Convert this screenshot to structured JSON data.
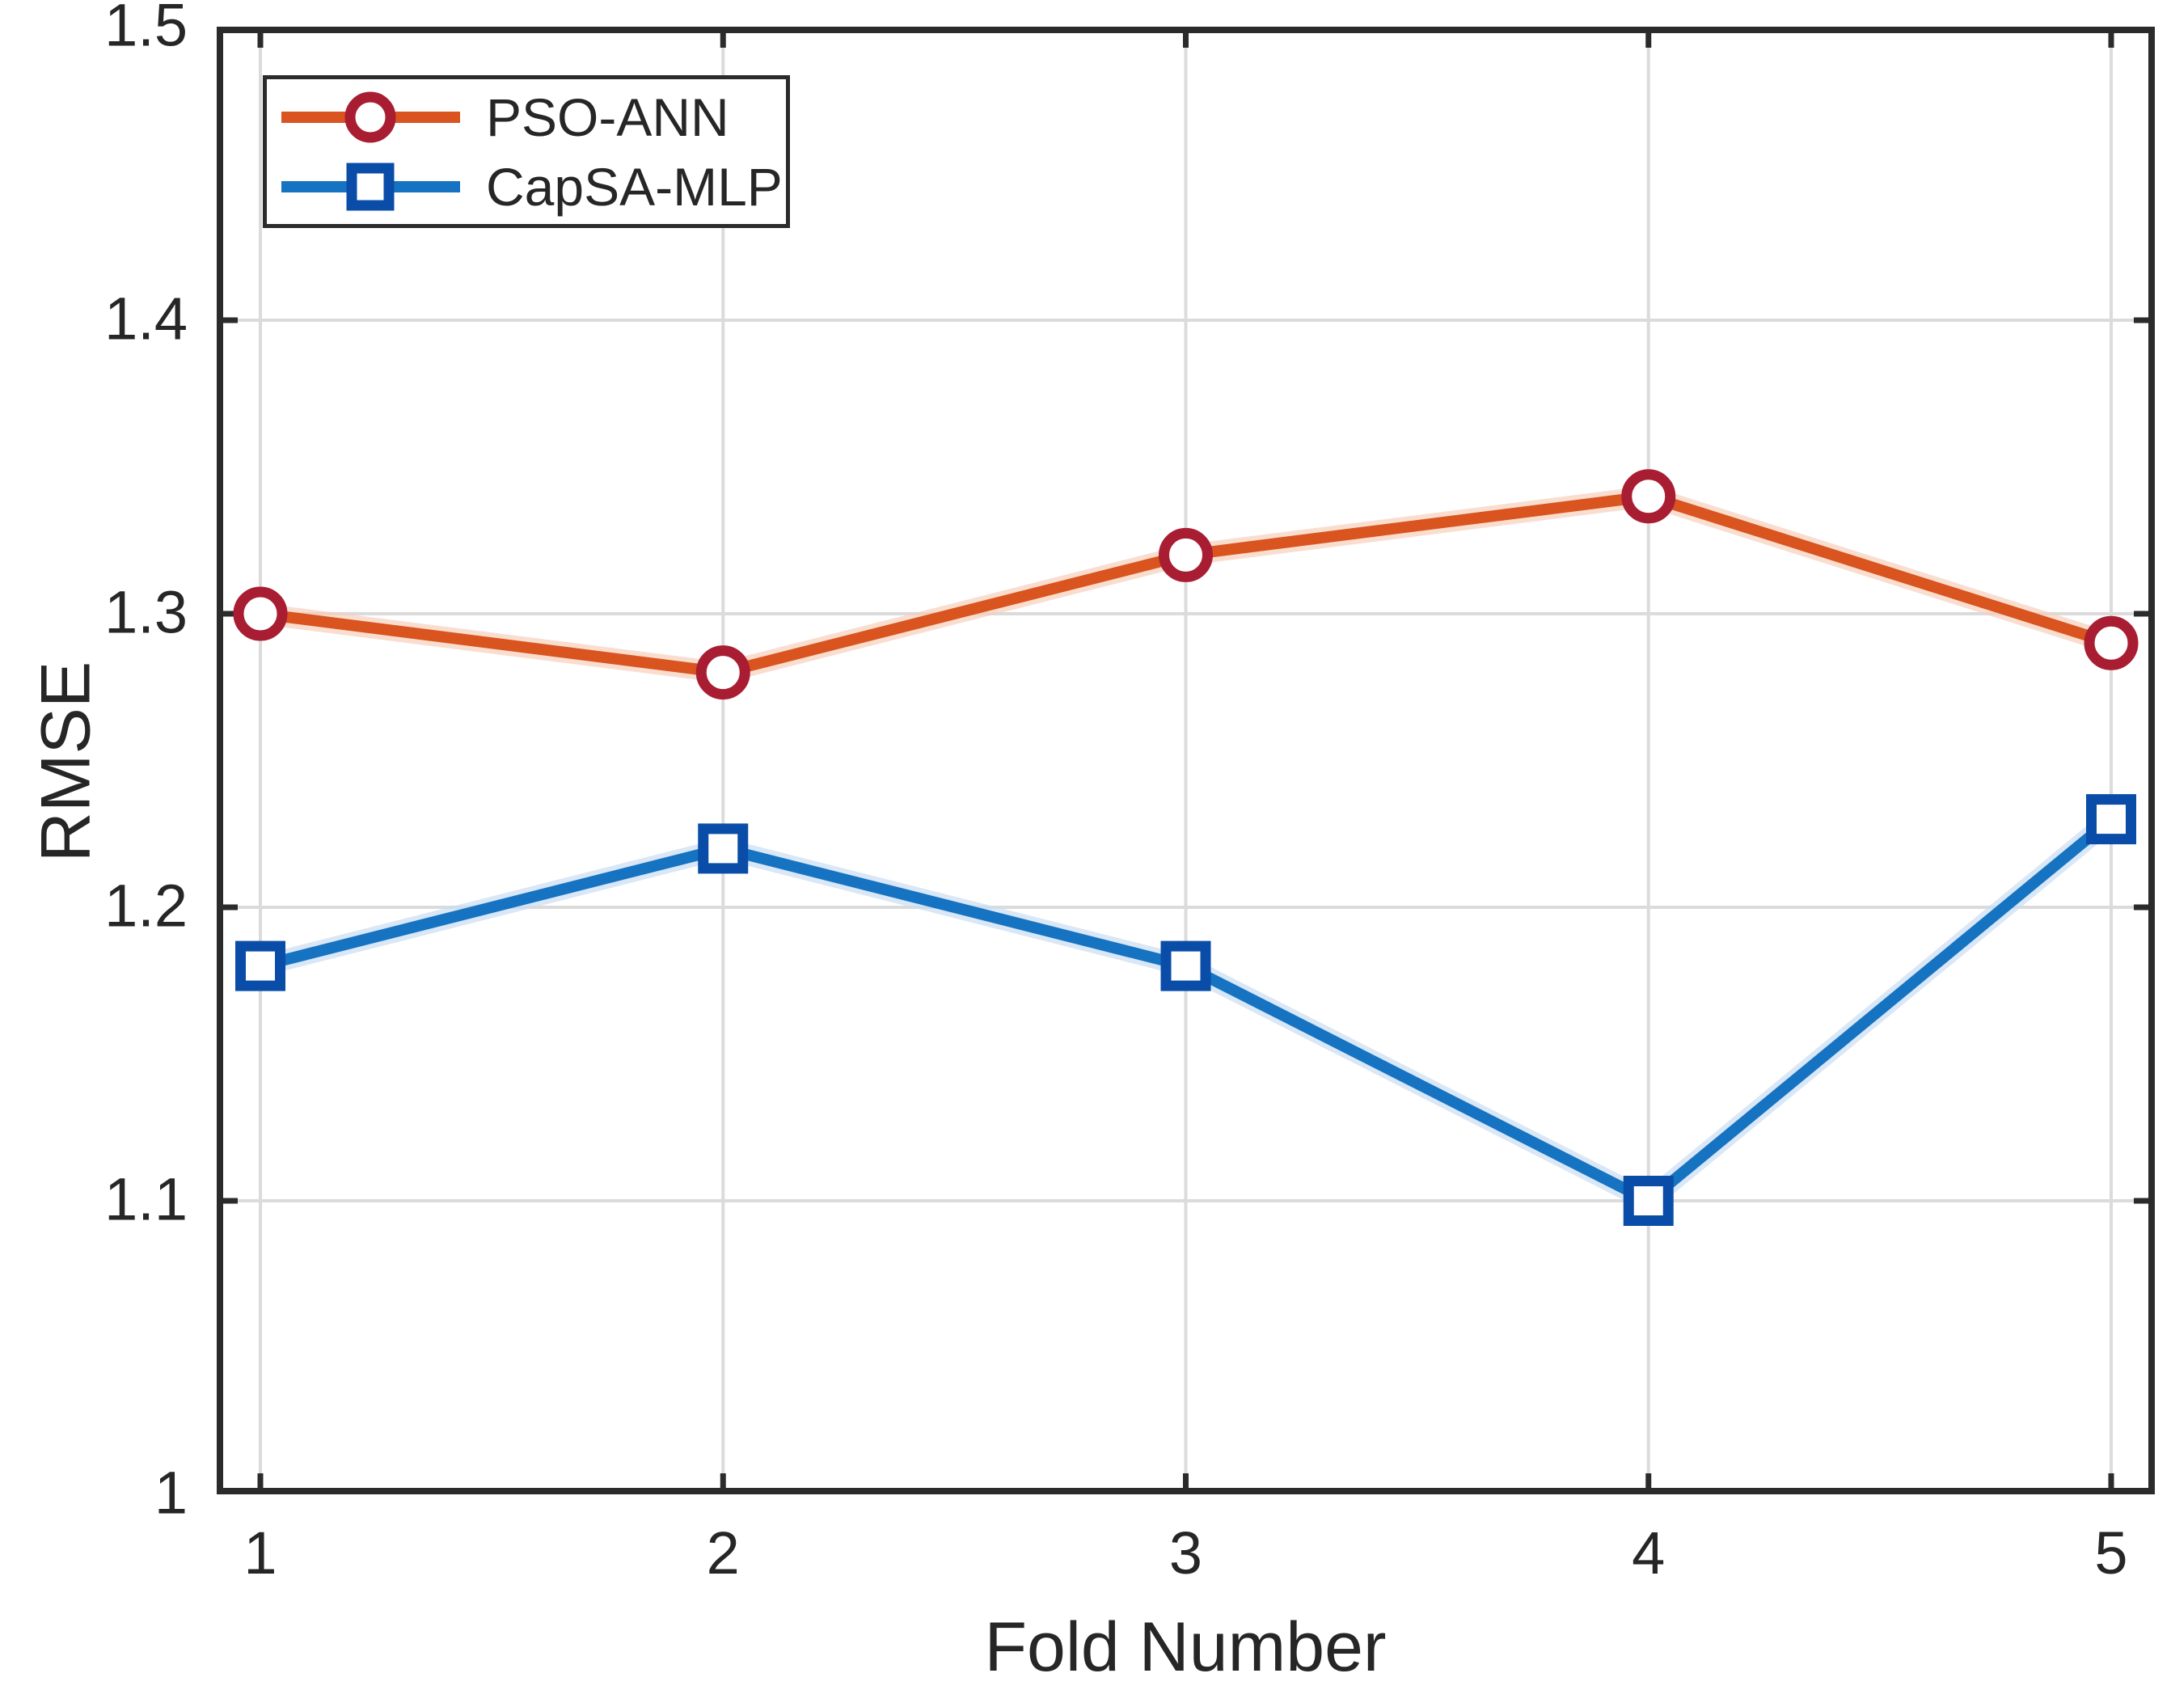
{
  "chart_data": {
    "type": "line",
    "title": "",
    "xlabel": "Fold Number",
    "ylabel": "RMSE",
    "x": [
      1,
      2,
      3,
      4,
      5
    ],
    "x_tick_labels": [
      "1",
      "2",
      "3",
      "4",
      "5"
    ],
    "y_tick_values": [
      1.5,
      1.4,
      1.3,
      1.2,
      1.1,
      1.0
    ],
    "y_tick_labels": [
      "1.5",
      "1.4",
      "1.3",
      "1.2",
      "1.1",
      "1"
    ],
    "ylim": [
      1.0,
      1.5
    ],
    "grid": true,
    "legend_position": "top-left",
    "series": [
      {
        "name": "PSO-ANN",
        "values": [
          1.3,
          1.28,
          1.32,
          1.34,
          1.29
        ],
        "line_color": "#D9541E",
        "halo_color": "#F6D0BC",
        "marker": "circle",
        "marker_edge_color": "#A91D33",
        "marker_face_color": "#FFFFFF"
      },
      {
        "name": "CapSA-MLP",
        "values": [
          1.18,
          1.22,
          1.18,
          1.1,
          1.23
        ],
        "line_color": "#1573C2",
        "halo_color": "#C9DDF2",
        "marker": "square",
        "marker_edge_color": "#0A4DA8",
        "marker_face_color": "#FFFFFF"
      }
    ]
  },
  "colors": {
    "background": "#FFFFFF",
    "grid": "#DBDBDB",
    "axis": "#2B2B2B",
    "text": "#262626"
  }
}
